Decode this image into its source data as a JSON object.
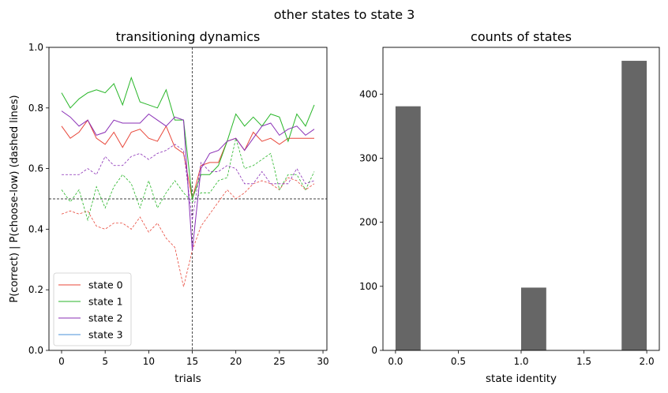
{
  "suptitle": "other states to state 3",
  "chart_data": [
    {
      "type": "line",
      "title": "transitioning dynamics",
      "xlabel": "trials",
      "ylabel": "P(correct) | P(choose-low) (dashed lines)",
      "xlim": [
        -1.45,
        30.45
      ],
      "ylim": [
        0,
        1
      ],
      "xticks": [
        0,
        5,
        10,
        15,
        20,
        25,
        30
      ],
      "yticks": [
        0.0,
        0.2,
        0.4,
        0.6,
        0.8,
        1.0
      ],
      "reference_lines": {
        "vertical_x": 15,
        "horizontal_y": 0.5
      },
      "legend_position": "lower left",
      "x": [
        0,
        1,
        2,
        3,
        4,
        5,
        6,
        7,
        8,
        9,
        10,
        11,
        12,
        13,
        14,
        15,
        16,
        17,
        18,
        19,
        20,
        21,
        22,
        23,
        24,
        25,
        26,
        27,
        28,
        29
      ],
      "series": [
        {
          "name": "state 0",
          "color": "#e8473a",
          "solid": [
            0.74,
            0.7,
            0.72,
            0.76,
            0.7,
            0.68,
            0.72,
            0.67,
            0.72,
            0.73,
            0.7,
            0.69,
            0.74,
            0.67,
            0.65,
            0.5,
            0.61,
            0.62,
            0.62,
            0.69,
            0.7,
            0.66,
            0.72,
            0.69,
            0.7,
            0.68,
            0.7,
            0.7,
            0.7,
            0.7
          ],
          "dashed": [
            0.45,
            0.46,
            0.45,
            0.46,
            0.41,
            0.4,
            0.42,
            0.42,
            0.4,
            0.44,
            0.39,
            0.42,
            0.37,
            0.34,
            0.21,
            0.33,
            0.41,
            0.45,
            0.49,
            0.53,
            0.5,
            0.52,
            0.55,
            0.56,
            0.55,
            0.53,
            0.57,
            0.56,
            0.53,
            0.55
          ]
        },
        {
          "name": "state 1",
          "color": "#28b628",
          "solid": [
            0.85,
            0.8,
            0.83,
            0.85,
            0.86,
            0.85,
            0.88,
            0.81,
            0.9,
            0.82,
            0.81,
            0.8,
            0.86,
            0.76,
            0.76,
            0.5,
            0.58,
            0.58,
            0.61,
            0.69,
            0.78,
            0.74,
            0.77,
            0.74,
            0.78,
            0.77,
            0.69,
            0.78,
            0.74,
            0.81
          ],
          "dashed": [
            0.53,
            0.49,
            0.53,
            0.43,
            0.54,
            0.47,
            0.54,
            0.58,
            0.55,
            0.47,
            0.56,
            0.47,
            0.52,
            0.56,
            0.52,
            0.49,
            0.52,
            0.52,
            0.56,
            0.57,
            0.7,
            0.6,
            0.61,
            0.63,
            0.65,
            0.53,
            0.58,
            0.58,
            0.53,
            0.59
          ]
        },
        {
          "name": "state 2",
          "color": "#8a2fb6",
          "solid": [
            0.79,
            0.77,
            0.74,
            0.76,
            0.71,
            0.72,
            0.76,
            0.75,
            0.75,
            0.75,
            0.78,
            0.76,
            0.74,
            0.77,
            0.76,
            0.33,
            0.6,
            0.65,
            0.66,
            0.69,
            0.7,
            0.66,
            0.7,
            0.74,
            0.75,
            0.71,
            0.73,
            0.74,
            0.71,
            0.73
          ],
          "dashed": [
            0.58,
            0.58,
            0.58,
            0.6,
            0.58,
            0.64,
            0.61,
            0.61,
            0.64,
            0.65,
            0.63,
            0.65,
            0.66,
            0.68,
            0.66,
            0.43,
            0.62,
            0.59,
            0.59,
            0.61,
            0.6,
            0.55,
            0.55,
            0.59,
            0.55,
            0.55,
            0.55,
            0.6,
            0.55,
            0.56
          ]
        },
        {
          "name": "state 3",
          "color": "#4a90d9",
          "solid": [],
          "dashed": []
        }
      ]
    },
    {
      "type": "bar",
      "title": "counts of states",
      "xlabel": "state identity",
      "ylabel": "",
      "xlim": [
        -0.1,
        2.1
      ],
      "ylim": [
        0,
        473
      ],
      "xticks": [
        0.0,
        0.5,
        1.0,
        1.5,
        2.0
      ],
      "yticks": [
        0,
        100,
        200,
        300,
        400
      ],
      "bar_color": "#666666",
      "bars": [
        {
          "x_start": 0.0,
          "x_end": 0.2,
          "value": 381
        },
        {
          "x_start": 1.0,
          "x_end": 1.2,
          "value": 98
        },
        {
          "x_start": 1.8,
          "x_end": 2.0,
          "value": 452
        }
      ]
    }
  ]
}
